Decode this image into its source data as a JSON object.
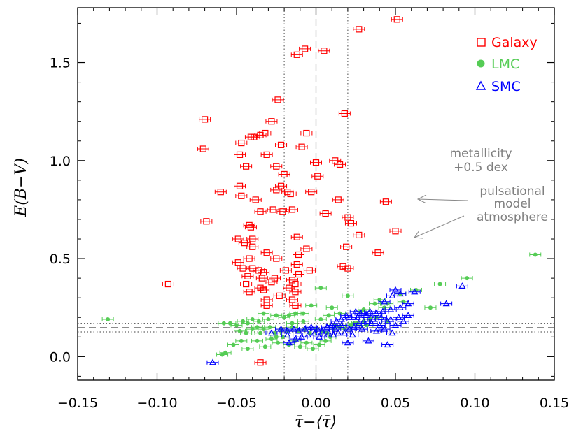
{
  "chart_data": {
    "type": "scatter",
    "xlabel": "τ̄−⟨τ̄⟩",
    "ylabel": "E(B−V)",
    "xlim": [
      -0.15,
      0.15
    ],
    "ylim": [
      -0.12,
      1.78
    ],
    "xticks": [
      -0.15,
      -0.1,
      -0.05,
      0.0,
      0.05,
      0.1,
      0.15
    ],
    "xtick_labels": [
      "−0.15",
      "−0.10",
      "−0.05",
      "0.00",
      "0.05",
      "0.10",
      "0.15"
    ],
    "yticks": [
      0.0,
      0.5,
      1.0,
      1.5
    ],
    "ytick_labels": [
      "0.0",
      "0.5",
      "1.0",
      "1.5"
    ],
    "grid": false,
    "legend_position": "top-right",
    "reference_lines": {
      "vertical_dashed": 0.0,
      "vertical_dotted": [
        -0.02,
        0.02
      ],
      "horizontal_dashed": 0.148,
      "horizontal_dotted": [
        0.126,
        0.17
      ]
    },
    "annotations": {
      "metallicity": [
        "metallicity",
        "+0.5 dex"
      ],
      "pulsational": [
        "pulsational",
        "model",
        "atmosphere"
      ]
    },
    "series": [
      {
        "name": "Galaxy",
        "marker": "square",
        "color": "#ff0000",
        "points": [
          [
            0.051,
            1.72
          ],
          [
            0.027,
            1.67
          ],
          [
            -0.007,
            1.57
          ],
          [
            -0.012,
            1.54
          ],
          [
            0.005,
            1.56
          ],
          [
            -0.024,
            1.31
          ],
          [
            0.018,
            1.24
          ],
          [
            -0.07,
            1.21
          ],
          [
            -0.028,
            1.2
          ],
          [
            -0.032,
            1.14
          ],
          [
            -0.035,
            1.13
          ],
          [
            -0.039,
            1.12
          ],
          [
            -0.041,
            1.12
          ],
          [
            -0.006,
            1.14
          ],
          [
            -0.047,
            1.09
          ],
          [
            -0.071,
            1.06
          ],
          [
            -0.048,
            1.03
          ],
          [
            -0.022,
            1.08
          ],
          [
            -0.009,
            1.07
          ],
          [
            -0.031,
            1.03
          ],
          [
            0.012,
            1.0
          ],
          [
            0.0,
            0.99
          ],
          [
            0.015,
            0.98
          ],
          [
            -0.044,
            0.97
          ],
          [
            -0.025,
            0.97
          ],
          [
            -0.02,
            0.93
          ],
          [
            0.001,
            0.92
          ],
          [
            -0.048,
            0.87
          ],
          [
            -0.022,
            0.87
          ],
          [
            -0.06,
            0.84
          ],
          [
            -0.025,
            0.85
          ],
          [
            -0.018,
            0.84
          ],
          [
            -0.016,
            0.83
          ],
          [
            -0.003,
            0.84
          ],
          [
            -0.047,
            0.82
          ],
          [
            0.014,
            0.8
          ],
          [
            -0.038,
            0.8
          ],
          [
            0.044,
            0.79
          ],
          [
            -0.035,
            0.74
          ],
          [
            -0.021,
            0.74
          ],
          [
            -0.015,
            0.75
          ],
          [
            -0.069,
            0.69
          ],
          [
            0.006,
            0.73
          ],
          [
            -0.027,
            0.75
          ],
          [
            0.02,
            0.71
          ],
          [
            0.022,
            0.68
          ],
          [
            -0.042,
            0.67
          ],
          [
            -0.041,
            0.66
          ],
          [
            0.027,
            0.62
          ],
          [
            -0.049,
            0.6
          ],
          [
            0.05,
            0.64
          ],
          [
            -0.012,
            0.61
          ],
          [
            -0.04,
            0.6
          ],
          [
            -0.045,
            0.58
          ],
          [
            -0.04,
            0.56
          ],
          [
            -0.006,
            0.55
          ],
          [
            0.019,
            0.56
          ],
          [
            -0.031,
            0.53
          ],
          [
            -0.011,
            0.52
          ],
          [
            0.039,
            0.53
          ],
          [
            -0.042,
            0.5
          ],
          [
            -0.025,
            0.5
          ],
          [
            -0.012,
            0.47
          ],
          [
            -0.049,
            0.48
          ],
          [
            -0.046,
            0.45
          ],
          [
            -0.04,
            0.45
          ],
          [
            -0.036,
            0.44
          ],
          [
            -0.033,
            0.43
          ],
          [
            -0.043,
            0.41
          ],
          [
            0.017,
            0.46
          ],
          [
            0.02,
            0.45
          ],
          [
            -0.019,
            0.44
          ],
          [
            -0.011,
            0.42
          ],
          [
            -0.004,
            0.44
          ],
          [
            -0.034,
            0.4
          ],
          [
            -0.028,
            0.38
          ],
          [
            -0.026,
            0.4
          ],
          [
            -0.015,
            0.39
          ],
          [
            -0.013,
            0.37
          ],
          [
            -0.093,
            0.37
          ],
          [
            -0.044,
            0.37
          ],
          [
            -0.035,
            0.35
          ],
          [
            -0.017,
            0.35
          ],
          [
            -0.013,
            0.33
          ],
          [
            -0.033,
            0.34
          ],
          [
            -0.042,
            0.33
          ],
          [
            -0.031,
            0.29
          ],
          [
            -0.031,
            0.26
          ],
          [
            -0.023,
            0.31
          ],
          [
            -0.015,
            0.29
          ],
          [
            -0.013,
            0.26
          ],
          [
            -0.035,
            -0.03
          ]
        ]
      },
      {
        "name": "LMC",
        "marker": "circle",
        "color": "#55cc55",
        "points": [
          [
            0.138,
            0.52
          ],
          [
            0.095,
            0.4
          ],
          [
            0.078,
            0.37
          ],
          [
            0.063,
            0.34
          ],
          [
            0.072,
            0.25
          ],
          [
            0.055,
            0.28
          ],
          [
            0.053,
            0.32
          ],
          [
            0.04,
            0.29
          ],
          [
            0.045,
            0.27
          ],
          [
            0.037,
            0.27
          ],
          [
            0.043,
            0.25
          ],
          [
            0.03,
            0.24
          ],
          [
            0.028,
            0.23
          ],
          [
            0.02,
            0.31
          ],
          [
            0.003,
            0.35
          ],
          [
            0.01,
            0.25
          ],
          [
            0.015,
            0.22
          ],
          [
            0.008,
            0.21
          ],
          [
            0.003,
            0.19
          ],
          [
            -0.003,
            0.26
          ],
          [
            -0.008,
            0.22
          ],
          [
            -0.013,
            0.22
          ],
          [
            -0.017,
            0.21
          ],
          [
            -0.02,
            0.2
          ],
          [
            -0.025,
            0.21
          ],
          [
            -0.03,
            0.19
          ],
          [
            -0.033,
            0.22
          ],
          [
            -0.036,
            0.18
          ],
          [
            -0.04,
            0.19
          ],
          [
            -0.043,
            0.17
          ],
          [
            -0.046,
            0.18
          ],
          [
            -0.05,
            0.16
          ],
          [
            -0.054,
            0.17
          ],
          [
            -0.058,
            0.17
          ],
          [
            -0.131,
            0.19
          ],
          [
            -0.048,
            0.13
          ],
          [
            -0.044,
            0.12
          ],
          [
            -0.04,
            0.14
          ],
          [
            -0.037,
            0.15
          ],
          [
            -0.033,
            0.14
          ],
          [
            -0.029,
            0.15
          ],
          [
            -0.026,
            0.12
          ],
          [
            -0.022,
            0.14
          ],
          [
            -0.018,
            0.13
          ],
          [
            -0.015,
            0.15
          ],
          [
            -0.011,
            0.13
          ],
          [
            -0.007,
            0.14
          ],
          [
            -0.004,
            0.12
          ],
          [
            0.0,
            0.14
          ],
          [
            0.004,
            0.13
          ],
          [
            0.007,
            0.12
          ],
          [
            0.011,
            0.14
          ],
          [
            0.015,
            0.15
          ],
          [
            0.018,
            0.14
          ],
          [
            0.022,
            0.16
          ],
          [
            0.026,
            0.17
          ],
          [
            0.03,
            0.18
          ],
          [
            0.034,
            0.19
          ],
          [
            0.038,
            0.2
          ],
          [
            -0.047,
            0.08
          ],
          [
            -0.043,
            0.04
          ],
          [
            -0.037,
            0.08
          ],
          [
            -0.032,
            0.05
          ],
          [
            -0.028,
            0.09
          ],
          [
            -0.024,
            0.07
          ],
          [
            -0.021,
            0.1
          ],
          [
            -0.017,
            0.06
          ],
          [
            -0.013,
            0.08
          ],
          [
            -0.01,
            0.05
          ],
          [
            -0.006,
            0.07
          ],
          [
            -0.002,
            0.04
          ],
          [
            0.002,
            0.06
          ],
          [
            0.006,
            0.08
          ],
          [
            0.009,
            0.1
          ],
          [
            -0.057,
            0.02
          ],
          [
            -0.059,
            0.01
          ],
          [
            -0.052,
            0.06
          ],
          [
            -0.035,
            0.12
          ],
          [
            -0.025,
            0.1
          ],
          [
            0.012,
            0.16
          ],
          [
            0.024,
            0.17
          ],
          [
            0.032,
            0.16
          ],
          [
            -0.008,
            0.18
          ],
          [
            -0.015,
            0.17
          ],
          [
            0.045,
            0.18
          ]
        ]
      },
      {
        "name": "SMC",
        "marker": "triangle",
        "color": "#0000ff",
        "points": [
          [
            0.092,
            0.36
          ],
          [
            0.082,
            0.27
          ],
          [
            0.05,
            0.34
          ],
          [
            0.062,
            0.33
          ],
          [
            0.053,
            0.32
          ],
          [
            0.048,
            0.31
          ],
          [
            0.043,
            0.28
          ],
          [
            0.058,
            0.27
          ],
          [
            0.053,
            0.25
          ],
          [
            0.047,
            0.24
          ],
          [
            0.042,
            0.23
          ],
          [
            0.038,
            0.22
          ],
          [
            0.034,
            0.23
          ],
          [
            0.031,
            0.21
          ],
          [
            0.028,
            0.22
          ],
          [
            0.025,
            0.23
          ],
          [
            0.022,
            0.2
          ],
          [
            0.019,
            0.21
          ],
          [
            0.016,
            0.19
          ],
          [
            0.013,
            0.18
          ],
          [
            0.01,
            0.16
          ],
          [
            0.007,
            0.15
          ],
          [
            0.004,
            0.13
          ],
          [
            0.001,
            0.14
          ],
          [
            -0.003,
            0.15
          ],
          [
            -0.007,
            0.14
          ],
          [
            -0.011,
            0.13
          ],
          [
            -0.014,
            0.14
          ],
          [
            -0.018,
            0.13
          ],
          [
            -0.022,
            0.14
          ],
          [
            0.03,
            0.18
          ],
          [
            0.035,
            0.17
          ],
          [
            0.04,
            0.16
          ],
          [
            0.045,
            0.18
          ],
          [
            0.05,
            0.16
          ],
          [
            0.055,
            0.18
          ],
          [
            0.058,
            0.21
          ],
          [
            0.052,
            0.2
          ],
          [
            0.047,
            0.19
          ],
          [
            0.041,
            0.2
          ],
          [
            0.036,
            0.19
          ],
          [
            0.027,
            0.17
          ],
          [
            0.024,
            0.15
          ],
          [
            0.021,
            0.14
          ],
          [
            0.018,
            0.12
          ],
          [
            0.014,
            0.12
          ],
          [
            0.011,
            0.11
          ],
          [
            0.008,
            0.12
          ],
          [
            0.005,
            0.11
          ],
          [
            0.002,
            0.1
          ],
          [
            -0.001,
            0.12
          ],
          [
            -0.005,
            0.11
          ],
          [
            -0.009,
            0.1
          ],
          [
            -0.013,
            0.09
          ],
          [
            -0.017,
            0.07
          ],
          [
            0.02,
            0.07
          ],
          [
            0.033,
            0.08
          ],
          [
            0.045,
            0.06
          ],
          [
            -0.018,
            0.11
          ],
          [
            -0.065,
            -0.03
          ],
          [
            0.026,
            0.2
          ],
          [
            0.032,
            0.21
          ],
          [
            0.038,
            0.13
          ],
          [
            0.043,
            0.14
          ],
          [
            0.048,
            0.12
          ],
          [
            0.012,
            0.14
          ],
          [
            0.016,
            0.16
          ],
          [
            0.029,
            0.14
          ],
          [
            0.023,
            0.11
          ],
          [
            -0.028,
            0.12
          ]
        ]
      }
    ]
  }
}
